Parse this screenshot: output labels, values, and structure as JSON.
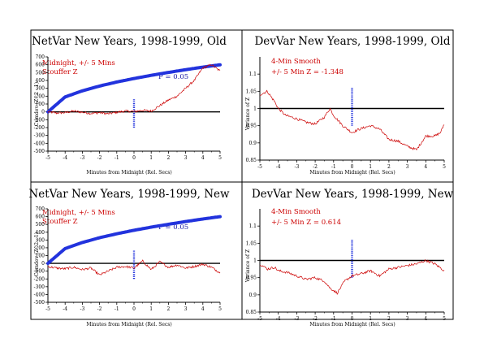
{
  "chart_data": [
    {
      "type": "line",
      "title": "NetVar New Years, 1998-1999, Old",
      "xlabel": "Minutes from Midnight (Rel. Secs)",
      "ylabel": "Cumdev (Z^2 - 1)",
      "xlim": [
        -5,
        5
      ],
      "ylim": [
        -500,
        700
      ],
      "xticks": [
        "-5",
        "-4",
        "-3",
        "-2",
        "-1",
        "0",
        "1",
        "2",
        "3",
        "4",
        "5"
      ],
      "yticks": [
        "-500",
        "-400",
        "-300",
        "-200",
        "-100",
        "0",
        "100",
        "200",
        "300",
        "400",
        "500",
        "600",
        "700"
      ],
      "annotations": [
        "Midnight, +/- 5 Mins",
        "Stouffer Z"
      ],
      "p_label": "P = 0.05",
      "colors": {
        "data": "#cc0000",
        "envelope": "#2233dd",
        "marker": "#2233dd",
        "axis": "#000000"
      },
      "series": [
        {
          "x": [
            -5,
            -4.5,
            -4,
            -3.5,
            -3,
            -2.5,
            -2,
            -1.5,
            -1,
            -0.5,
            0,
            0.5,
            1,
            1.5,
            2,
            2.5,
            3,
            3.5,
            4,
            4.5,
            5
          ],
          "values": [
            0,
            -15,
            -10,
            10,
            -5,
            -20,
            -10,
            -25,
            -5,
            10,
            5,
            20,
            10,
            80,
            150,
            200,
            300,
            400,
            560,
            600,
            520
          ]
        }
      ],
      "p_envelope": {
        "x": [
          -5,
          -4,
          -3,
          -2,
          -1,
          0,
          1,
          2,
          3,
          4,
          5
        ],
        "values": [
          0,
          190,
          268,
          329,
          380,
          425,
          465,
          502,
          537,
          570,
          600
        ]
      },
      "marker": {
        "x": 0,
        "y_range": [
          -200,
          170
        ]
      }
    },
    {
      "type": "line",
      "title": "DevVar New Years, 1998-1999, Old",
      "xlabel": "Minutes from Midnight (Rel. Secs)",
      "ylabel": "Variance of Z",
      "xlim": [
        -5,
        5
      ],
      "ylim": [
        0.85,
        1.15
      ],
      "xticks": [
        "-5",
        "-4",
        "-3",
        "-2",
        "-1",
        "0",
        "1",
        "2",
        "3",
        "4",
        "5"
      ],
      "yticks": [
        "0.85",
        "0.9",
        "0.95",
        "1",
        "1.05",
        "1.1"
      ],
      "annotations": [
        "4-Min Smooth",
        "+/- 5 Min Z = -1.348"
      ],
      "colors": {
        "data": "#cc0000",
        "marker": "#2233dd",
        "axis": "#000000"
      },
      "series": [
        {
          "x": [
            -5,
            -4.6,
            -4.2,
            -4,
            -3.6,
            -3,
            -2.5,
            -2,
            -1.5,
            -1.2,
            -1,
            -0.5,
            0,
            0.4,
            1,
            1.5,
            2,
            2.5,
            3,
            3.5,
            4,
            4.5,
            4.8,
            5
          ],
          "values": [
            1.04,
            1.05,
            1.02,
            1.0,
            0.98,
            0.97,
            0.96,
            0.955,
            0.975,
            1.0,
            0.98,
            0.95,
            0.93,
            0.94,
            0.95,
            0.94,
            0.91,
            0.905,
            0.89,
            0.88,
            0.92,
            0.92,
            0.93,
            0.955
          ]
        }
      ],
      "marker": {
        "x": 0,
        "y_range": [
          0.95,
          1.06
        ]
      }
    },
    {
      "type": "line",
      "title": "NetVar New Years, 1998-1999, New",
      "xlabel": "Minutes from Midnight (Rel. Secs)",
      "ylabel": "Cumdev (Z^2 - 1)",
      "xlim": [
        -5,
        5
      ],
      "ylim": [
        -500,
        700
      ],
      "xticks": [
        "-5",
        "-4",
        "-3",
        "-2",
        "-1",
        "0",
        "1",
        "2",
        "3",
        "4",
        "5"
      ],
      "yticks": [
        "-500",
        "-400",
        "-300",
        "-200",
        "-100",
        "0",
        "100",
        "200",
        "300",
        "400",
        "500",
        "600",
        "700"
      ],
      "annotations": [
        "Midnight, +/- 5 Mins",
        "Stouffer Z"
      ],
      "p_label": "P = 0.05",
      "colors": {
        "data": "#cc0000",
        "envelope": "#2233dd",
        "marker": "#2233dd",
        "axis": "#000000"
      },
      "series": [
        {
          "x": [
            -5,
            -4.5,
            -4,
            -3.5,
            -3,
            -2.5,
            -2,
            -1.5,
            -1,
            -0.5,
            0,
            0.5,
            1,
            1.5,
            2,
            2.5,
            3,
            3.5,
            4,
            4.5,
            5
          ],
          "values": [
            -40,
            -60,
            -70,
            -50,
            -80,
            -60,
            -150,
            -100,
            -50,
            -40,
            -60,
            30,
            -80,
            20,
            -50,
            -20,
            -60,
            -40,
            -10,
            -50,
            -120
          ]
        }
      ],
      "p_envelope": {
        "x": [
          -5,
          -4,
          -3,
          -2,
          -1,
          0,
          1,
          2,
          3,
          4,
          5
        ],
        "values": [
          0,
          190,
          268,
          329,
          380,
          425,
          465,
          502,
          537,
          570,
          600
        ]
      },
      "marker": {
        "x": 0,
        "y_range": [
          -200,
          170
        ]
      }
    },
    {
      "type": "line",
      "title": "DevVar New Years, 1998-1999, New",
      "xlabel": "Minutes from Midnight (Rel. Secs)",
      "ylabel": "Variance of Z",
      "xlim": [
        -5,
        5
      ],
      "ylim": [
        0.85,
        1.15
      ],
      "xticks": [
        "-5",
        "-4",
        "-3",
        "-2",
        "-1",
        "0",
        "1",
        "2",
        "3",
        "4",
        "5"
      ],
      "yticks": [
        "0.85",
        "0.9",
        "0.95",
        "1",
        "1.05",
        "1.1"
      ],
      "annotations": [
        "4-Min Smooth",
        "+/- 5 Min Z = 0.614"
      ],
      "colors": {
        "data": "#cc0000",
        "marker": "#2233dd",
        "axis": "#000000"
      },
      "series": [
        {
          "x": [
            -5,
            -4.6,
            -4.2,
            -4,
            -3.5,
            -3,
            -2.5,
            -2,
            -1.5,
            -1.2,
            -0.8,
            -0.4,
            0,
            0.4,
            1,
            1.5,
            2,
            2.5,
            3,
            3.5,
            4,
            4.5,
            5
          ],
          "values": [
            0.99,
            0.975,
            0.98,
            0.97,
            0.965,
            0.955,
            0.945,
            0.95,
            0.94,
            0.92,
            0.905,
            0.94,
            0.955,
            0.96,
            0.97,
            0.955,
            0.975,
            0.98,
            0.985,
            0.99,
            1.0,
            0.99,
            0.97
          ]
        }
      ],
      "marker": {
        "x": 0,
        "y_range": [
          0.95,
          1.06
        ]
      }
    }
  ]
}
